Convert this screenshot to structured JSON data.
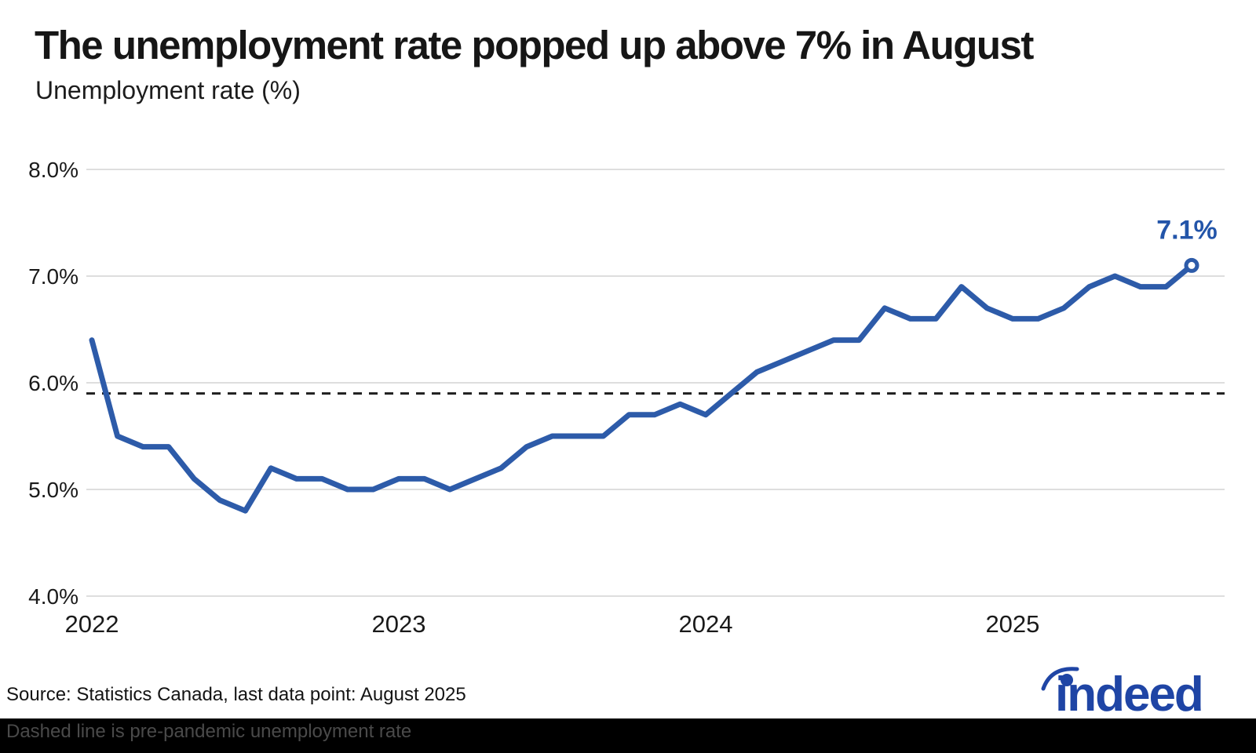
{
  "title": "The unemployment rate popped up above 7% in August",
  "subtitle": "Unemployment rate (%)",
  "annotation": {
    "label": "7.1%"
  },
  "footer": {
    "source": "Source: Statistics Canada, last data point: August 2025",
    "caption": "Dashed line is pre-pandemic unemployment rate"
  },
  "logo": {
    "text": "indeed"
  },
  "colors": {
    "line": "#2d5ba9",
    "annotation": "#2355a9",
    "logo_blue": "#1f45a5",
    "grid": "#dedede",
    "dashed": "#1f1f1f",
    "axis_text": "#1a1a1a"
  },
  "chart_data": {
    "type": "line",
    "title": "The unemployment rate popped up above 7% in August",
    "subtitle": "Unemployment rate (%)",
    "x": [
      "Jan 2022",
      "Feb 2022",
      "Mar 2022",
      "Apr 2022",
      "May 2022",
      "Jun 2022",
      "Jul 2022",
      "Aug 2022",
      "Sep 2022",
      "Oct 2022",
      "Nov 2022",
      "Dec 2022",
      "Jan 2023",
      "Feb 2023",
      "Mar 2023",
      "Apr 2023",
      "May 2023",
      "Jun 2023",
      "Jul 2023",
      "Aug 2023",
      "Sep 2023",
      "Oct 2023",
      "Nov 2023",
      "Dec 2023",
      "Jan 2024",
      "Feb 2024",
      "Mar 2024",
      "Apr 2024",
      "May 2024",
      "Jun 2024",
      "Jul 2024",
      "Aug 2024",
      "Sep 2024",
      "Oct 2024",
      "Nov 2024",
      "Dec 2024",
      "Jan 2025",
      "Feb 2025",
      "Mar 2025",
      "Apr 2025",
      "May 2025",
      "Jun 2025",
      "Jul 2025",
      "Aug 2025"
    ],
    "series": [
      {
        "name": "Unemployment rate (%)",
        "values": [
          6.4,
          5.5,
          5.4,
          5.4,
          5.1,
          4.9,
          4.8,
          5.2,
          5.1,
          5.1,
          5.0,
          5.0,
          5.1,
          5.1,
          5.0,
          5.1,
          5.2,
          5.4,
          5.5,
          5.5,
          5.5,
          5.7,
          5.7,
          5.8,
          5.7,
          5.9,
          6.1,
          6.2,
          6.3,
          6.4,
          6.4,
          6.7,
          6.6,
          6.6,
          6.9,
          6.7,
          6.6,
          6.6,
          6.7,
          6.9,
          7.0,
          6.9,
          6.9,
          7.1
        ]
      }
    ],
    "reference_line": {
      "value": 5.9,
      "style": "dashed",
      "note": "pre-pandemic unemployment rate"
    },
    "yticks": [
      {
        "label": "8.0%",
        "value": 8.0
      },
      {
        "label": "7.0%",
        "value": 7.0
      },
      {
        "label": "6.0%",
        "value": 6.0
      },
      {
        "label": "5.0%",
        "value": 5.0
      },
      {
        "label": "4.0%",
        "value": 4.0
      }
    ],
    "xticks": [
      "2022",
      "2023",
      "2024",
      "2025"
    ],
    "ylim": [
      4.0,
      8.0
    ],
    "grid": "horizontal-only",
    "legend": "none",
    "last_point_label": "7.1%"
  }
}
